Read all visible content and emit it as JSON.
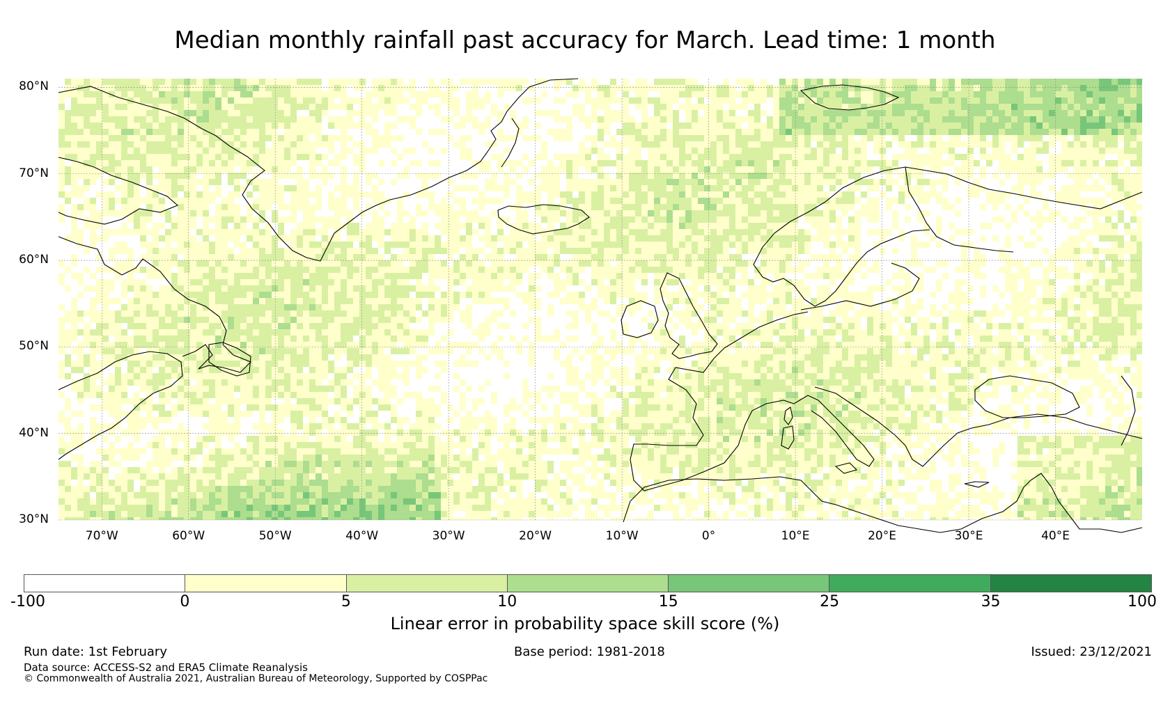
{
  "title": "Median monthly rainfall past accuracy for March. Lead time: 1 month",
  "map": {
    "lat_labels": [
      "80°N",
      "70°N",
      "60°N",
      "50°N",
      "40°N",
      "30°N"
    ],
    "lon_labels": [
      "70°W",
      "60°W",
      "50°W",
      "40°W",
      "30°W",
      "20°W",
      "10°W",
      "0°",
      "10°E",
      "20°E",
      "30°E",
      "40°E"
    ],
    "lon_range": [
      -75,
      50
    ],
    "lat_range": [
      30,
      81
    ],
    "grid_color": "#888888",
    "coastline_color": "#000000",
    "cell_colors_by_class": [
      "#ffffff",
      "#ffffcc",
      "#d9f0a3",
      "#addd8e",
      "#78c679",
      "#41ab5d",
      "#238443"
    ]
  },
  "colorbar": {
    "bounds": [
      "-100",
      "0",
      "5",
      "10",
      "15",
      "25",
      "35",
      "100"
    ],
    "colors": [
      "#ffffff",
      "#ffffcc",
      "#d9f0a3",
      "#addd8e",
      "#78c679",
      "#41ab5d",
      "#238443"
    ],
    "label": "Linear error in probability space skill score (%)"
  },
  "footer": {
    "run_date": "Run date: 1st February",
    "base_period": "Base period: 1981-2018",
    "issued": "Issued: 23/12/2021",
    "data_source": "Data source: ACCESS-S2 and ERA5 Climate Reanalysis",
    "copyright": "© Commonwealth of Australia 2021, Australian Bureau of Meteorology, Supported by COSPPac"
  }
}
